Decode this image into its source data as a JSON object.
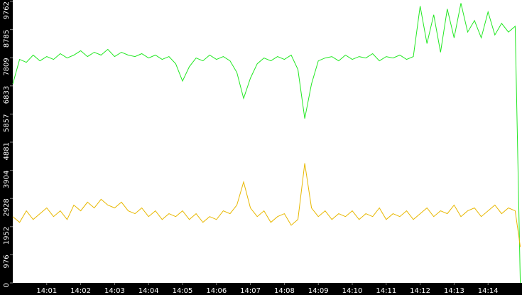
{
  "chart_data": {
    "type": "line",
    "x": [
      0,
      0.2,
      0.4,
      0.6,
      0.8,
      1,
      1.2,
      1.4,
      1.6,
      1.8,
      2,
      2.2,
      2.4,
      2.6,
      2.8,
      3,
      3.2,
      3.4,
      3.6,
      3.8,
      4,
      4.2,
      4.4,
      4.6,
      4.8,
      5,
      5.2,
      5.4,
      5.6,
      5.8,
      6,
      6.2,
      6.4,
      6.6,
      6.8,
      7,
      7.2,
      7.4,
      7.6,
      7.8,
      8,
      8.2,
      8.4,
      8.6,
      8.8,
      9,
      9.2,
      9.4,
      9.6,
      9.8,
      10,
      10.2,
      10.4,
      10.6,
      10.8,
      11,
      11.2,
      11.4,
      11.6,
      11.8,
      12,
      12.2,
      12.4,
      12.6,
      12.8,
      13,
      13.2,
      13.4,
      13.6,
      13.8,
      14,
      14.2,
      14.4,
      14.6,
      14.8,
      14.95
    ],
    "series": [
      {
        "color": "#22e822",
        "values": [
          6900,
          7750,
          7650,
          7900,
          7700,
          7850,
          7750,
          7950,
          7800,
          7900,
          8050,
          7850,
          8000,
          7900,
          8100,
          7850,
          8000,
          7900,
          7850,
          7950,
          7800,
          7900,
          7750,
          7850,
          7600,
          7000,
          7500,
          7800,
          7700,
          7900,
          7750,
          7850,
          7700,
          7300,
          6400,
          7100,
          7600,
          7800,
          7700,
          7850,
          7750,
          7900,
          7400,
          5700,
          6900,
          7700,
          7800,
          7850,
          7700,
          7900,
          7750,
          7850,
          7800,
          7950,
          7700,
          7850,
          7800,
          7900,
          7750,
          7850,
          9600,
          8300,
          9300,
          8000,
          9500,
          8500,
          9700,
          8700,
          9100,
          8500,
          9400,
          8600,
          9000,
          8700,
          8900,
          0
        ]
      },
      {
        "color": "#e8b800",
        "values": [
          2300,
          2100,
          2500,
          2200,
          2400,
          2600,
          2300,
          2500,
          2200,
          2700,
          2500,
          2800,
          2600,
          2900,
          2700,
          2600,
          2800,
          2500,
          2400,
          2600,
          2300,
          2500,
          2200,
          2400,
          2300,
          2500,
          2200,
          2400,
          2100,
          2300,
          2200,
          2500,
          2400,
          2700,
          3500,
          2600,
          2300,
          2500,
          2100,
          2300,
          2400,
          2000,
          2200,
          4150,
          2600,
          2300,
          2500,
          2200,
          2400,
          2300,
          2500,
          2200,
          2400,
          2300,
          2600,
          2200,
          2400,
          2300,
          2500,
          2200,
          2400,
          2600,
          2300,
          2500,
          2400,
          2700,
          2300,
          2500,
          2600,
          2300,
          2500,
          2700,
          2400,
          2600,
          2500,
          1250
        ]
      }
    ],
    "xlim": [
      0,
      15
    ],
    "xticks": [
      {
        "value": 1,
        "label": "14:01"
      },
      {
        "value": 2,
        "label": "14:02"
      },
      {
        "value": 3,
        "label": "14:03"
      },
      {
        "value": 4,
        "label": "14:04"
      },
      {
        "value": 5,
        "label": "14:05"
      },
      {
        "value": 6,
        "label": "14:06"
      },
      {
        "value": 7,
        "label": "14:07"
      },
      {
        "value": 8,
        "label": "14:08"
      },
      {
        "value": 9,
        "label": "14:09"
      },
      {
        "value": 10,
        "label": "14:10"
      },
      {
        "value": 11,
        "label": "14:11"
      },
      {
        "value": 12,
        "label": "14:12"
      },
      {
        "value": 13,
        "label": "14:13"
      },
      {
        "value": 14,
        "label": "14:14"
      }
    ],
    "ylim": [
      0,
      9762
    ],
    "yticks": [
      0,
      976,
      1952,
      2928,
      3904,
      4881,
      5857,
      6833,
      7809,
      8785,
      9762
    ]
  }
}
